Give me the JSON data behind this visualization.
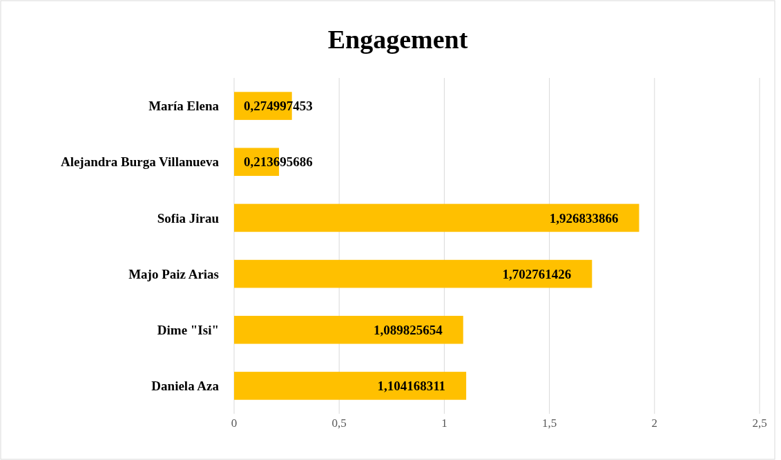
{
  "chart_data": {
    "type": "bar",
    "orientation": "horizontal",
    "title": "Engagement",
    "categories": [
      "María Elena",
      "Alejandra Burga Villanueva",
      "Sofia Jirau",
      "Majo Paiz Arias",
      "Dime \"Isi\"",
      "Daniela Aza"
    ],
    "values": [
      0.274997453,
      0.213695686,
      1.926833866,
      1.702761426,
      1.089825654,
      1.104168311
    ],
    "value_labels": [
      "0,274997453",
      "0,213695686",
      "1,926833866",
      "1,702761426",
      "1,089825654",
      "1,104168311"
    ],
    "color": "#ffc000",
    "xlim": [
      0,
      2.5
    ],
    "xticks": [
      0,
      {
        "value": 0.5,
        "label": "0,5"
      },
      1,
      {
        "value": 1.5,
        "label": "1,5"
      },
      2,
      {
        "value": 2.5,
        "label": "2,5"
      }
    ],
    "grid": "x"
  }
}
